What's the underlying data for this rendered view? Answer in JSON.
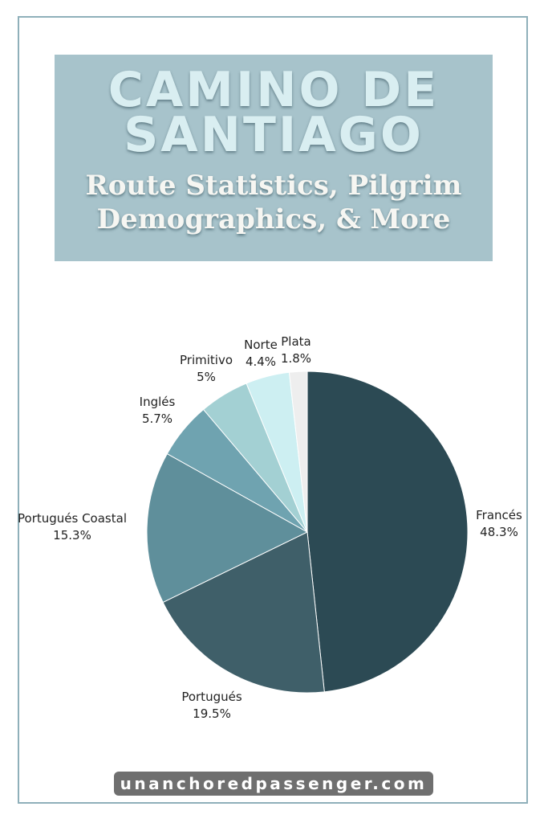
{
  "banner": {
    "title_line1": "CAMINO DE",
    "title_line2": "SANTIAGO",
    "subtitle_line1": "Route Statistics, Pilgrim",
    "subtitle_line2": "Demographics, & More"
  },
  "footer": {
    "site": "unanchoredpassenger.com"
  },
  "colors": {
    "banner_bg": "#a7c3cb",
    "frame": "#8fb0ba",
    "footer_bg": "#6f6f6f"
  },
  "chart_data": {
    "type": "pie",
    "start": "top",
    "direction": "clockwise",
    "slices": [
      {
        "label": "Francés",
        "value": 48.3,
        "display": "48.3%",
        "color": "#2c4a54"
      },
      {
        "label": "Portugués",
        "value": 19.5,
        "display": "19.5%",
        "color": "#3f5f69"
      },
      {
        "label": "Portugués Coastal",
        "value": 15.3,
        "display": "15.3%",
        "color": "#5f8f9b"
      },
      {
        "label": "Inglés",
        "value": 5.7,
        "display": "5.7%",
        "color": "#6fa3b0"
      },
      {
        "label": "Primitivo",
        "value": 5,
        "display": "5%",
        "color": "#a3d0d3"
      },
      {
        "label": "Norte",
        "value": 4.4,
        "display": "4.4%",
        "color": "#cdeff2"
      },
      {
        "label": "Plata",
        "value": 1.8,
        "display": "1.8%",
        "color": "#eeeeee"
      }
    ]
  }
}
